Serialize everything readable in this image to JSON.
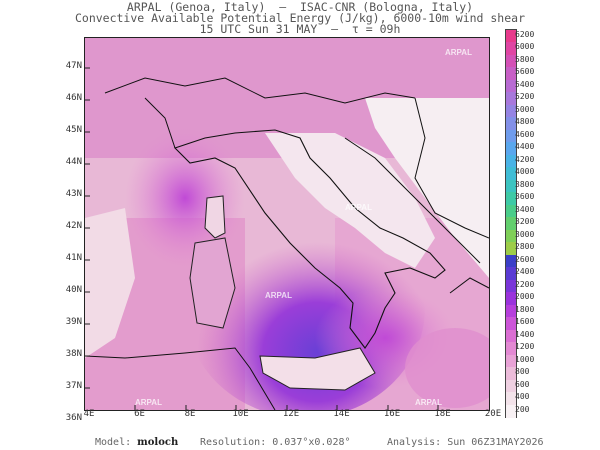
{
  "header": {
    "line1": "ARPAL (Genoa, Italy)  —  ISAC-CNR (Bologna, Italy)",
    "line2": "Convective Available Potential Energy (J/kg), 6000-10m wind shear",
    "line3": "15 UTC Sun 31 MAY  —  τ = 09h"
  },
  "axes": {
    "lat_labels": [
      "47N",
      "46N",
      "45N",
      "44N",
      "43N",
      "42N",
      "41N",
      "40N",
      "39N",
      "38N",
      "37N",
      "36N"
    ],
    "lon_labels": [
      "4E",
      "6E",
      "8E",
      "10E",
      "12E",
      "14E",
      "16E",
      "18E",
      "20E"
    ]
  },
  "colorbar": {
    "labels": [
      "6200",
      "6000",
      "5800",
      "5600",
      "5400",
      "5200",
      "5000",
      "4800",
      "4600",
      "4400",
      "4200",
      "4000",
      "3800",
      "3600",
      "3400",
      "3200",
      "3000",
      "2800",
      "2600",
      "2400",
      "2200",
      "2000",
      "1800",
      "1600",
      "1400",
      "1200",
      "1000",
      "800",
      "600",
      "400",
      "200"
    ],
    "colors": [
      "#e83a8c",
      "#e045a3",
      "#d451b6",
      "#c85fc6",
      "#b86bd3",
      "#a878dc",
      "#9584e3",
      "#8390e8",
      "#6f9cec",
      "#5aa7ee",
      "#4ab3e6",
      "#40bdd6",
      "#3cc4c0",
      "#3ecaa6",
      "#4acd8a",
      "#62cf6e",
      "#7fcf58",
      "#9dcd48",
      "#3b3fc8",
      "#5a3bd4",
      "#7a36d9",
      "#9a33dc",
      "#b63fdc",
      "#cc55d8",
      "#db6fd3",
      "#e389d3",
      "#e8a2d6",
      "#ecbcda",
      "#efd1e2",
      "#f3e3ea",
      "#f8f1f4"
    ]
  },
  "footer": {
    "model_label": "Model:",
    "model_value": "moloch",
    "resolution": "Resolution: 0.037°x0.028°",
    "analysis": "Analysis: Sun 06Z31MAY2026"
  },
  "watermark": "ARPAL"
}
